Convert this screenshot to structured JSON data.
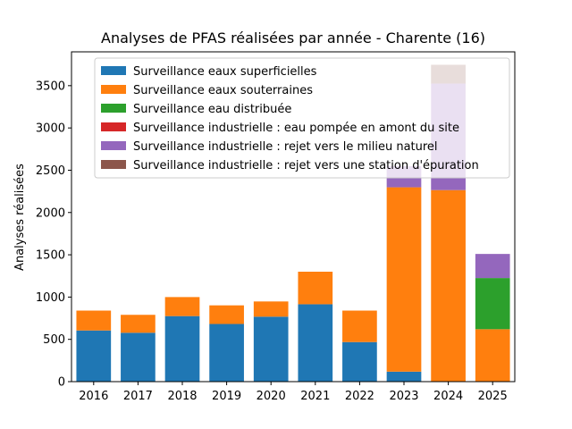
{
  "chart_data": {
    "type": "bar",
    "stacked": true,
    "title": "Analyses de PFAS réalisées par année - Charente (16)",
    "xlabel": "",
    "ylabel": "Analyses réalisées",
    "ylim": [
      0,
      3900
    ],
    "yticks": [
      0,
      500,
      1000,
      1500,
      2000,
      2500,
      3000,
      3500
    ],
    "categories": [
      "2016",
      "2017",
      "2018",
      "2019",
      "2020",
      "2021",
      "2022",
      "2023",
      "2024",
      "2025"
    ],
    "legend_position": "top-center",
    "series": [
      {
        "name": "Surveillance eaux superficielles",
        "color": "#1f77b4",
        "values": [
          605,
          578,
          775,
          682,
          768,
          915,
          468,
          118,
          0,
          0
        ]
      },
      {
        "name": "Surveillance eaux souterraines",
        "color": "#ff7f0e",
        "values": [
          235,
          212,
          225,
          220,
          180,
          385,
          372,
          2180,
          2265,
          620
        ]
      },
      {
        "name": "Surveillance eau distribuée",
        "color": "#2ca02c",
        "values": [
          0,
          0,
          0,
          0,
          0,
          0,
          0,
          0,
          0,
          605
        ]
      },
      {
        "name": "Surveillance industrielle : eau pompée en amont du site",
        "color": "#d62728",
        "values": [
          0,
          0,
          0,
          0,
          0,
          0,
          0,
          0,
          0,
          0
        ]
      },
      {
        "name": "Surveillance industrielle : rejet vers le milieu naturel",
        "color": "#9467bd",
        "values": [
          0,
          0,
          0,
          0,
          0,
          0,
          0,
          250,
          1260,
          285
        ]
      },
      {
        "name": "Surveillance industrielle : rejet vers une station d'épuration",
        "color": "#8c564b",
        "values": [
          0,
          0,
          0,
          0,
          0,
          0,
          0,
          0,
          222,
          0
        ]
      }
    ]
  }
}
